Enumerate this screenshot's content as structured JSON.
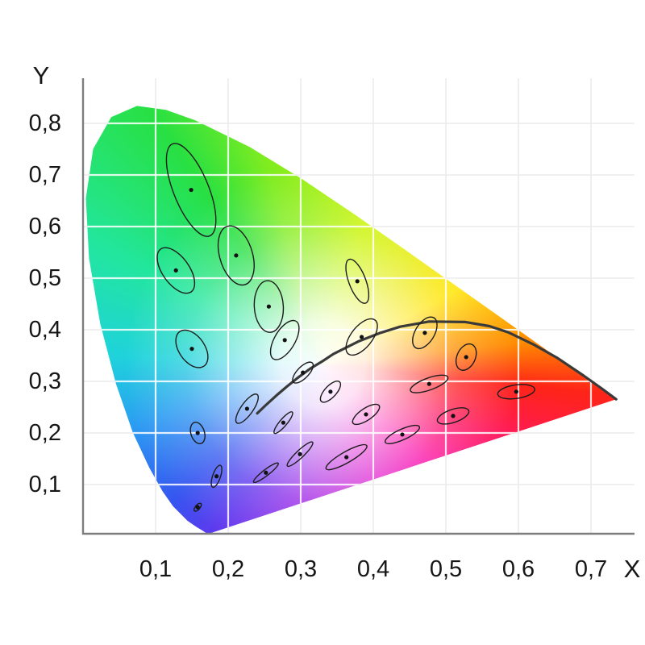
{
  "chart_data": {
    "type": "scatter",
    "description": "CIE 1931 xy chromaticity diagram (colored spectral-locus horseshoe) with MacAdam ellipses magnified 10x and the Planckian locus curve",
    "xlabel": "X",
    "ylabel": "Y",
    "xlim": [
      0,
      0.76
    ],
    "ylim": [
      0,
      0.885
    ],
    "grid": true,
    "legend": null,
    "decimal_separator": ",",
    "x_ticks": [
      {
        "value": 0.1,
        "label": "0,1"
      },
      {
        "value": 0.2,
        "label": "0,2"
      },
      {
        "value": 0.3,
        "label": "0,3"
      },
      {
        "value": 0.4,
        "label": "0,4"
      },
      {
        "value": 0.5,
        "label": "0,5"
      },
      {
        "value": 0.6,
        "label": "0,6"
      },
      {
        "value": 0.7,
        "label": "0,7"
      }
    ],
    "y_ticks": [
      {
        "value": 0.1,
        "label": "0,1"
      },
      {
        "value": 0.2,
        "label": "0,2"
      },
      {
        "value": 0.3,
        "label": "0,3"
      },
      {
        "value": 0.4,
        "label": "0,4"
      },
      {
        "value": 0.5,
        "label": "0,5"
      },
      {
        "value": 0.6,
        "label": "0,6"
      },
      {
        "value": 0.7,
        "label": "0,7"
      },
      {
        "value": 0.8,
        "label": "0,8"
      }
    ],
    "spectral_locus": [
      [
        0.1741,
        0.005
      ],
      [
        0.1726,
        0.0048
      ],
      [
        0.1689,
        0.0069
      ],
      [
        0.1644,
        0.0109
      ],
      [
        0.1566,
        0.0177
      ],
      [
        0.144,
        0.0297
      ],
      [
        0.1241,
        0.0578
      ],
      [
        0.1096,
        0.0868
      ],
      [
        0.0913,
        0.1327
      ],
      [
        0.0687,
        0.2007
      ],
      [
        0.0454,
        0.295
      ],
      [
        0.0235,
        0.4127
      ],
      [
        0.0082,
        0.5384
      ],
      [
        0.0039,
        0.6548
      ],
      [
        0.0139,
        0.7502
      ],
      [
        0.0389,
        0.812
      ],
      [
        0.0743,
        0.8338
      ],
      [
        0.1142,
        0.8262
      ],
      [
        0.1547,
        0.8059
      ],
      [
        0.2296,
        0.7543
      ],
      [
        0.3016,
        0.6923
      ],
      [
        0.3731,
        0.6245
      ],
      [
        0.4441,
        0.5547
      ],
      [
        0.5125,
        0.4866
      ],
      [
        0.5752,
        0.4242
      ],
      [
        0.627,
        0.3725
      ],
      [
        0.6658,
        0.334
      ],
      [
        0.6915,
        0.3083
      ],
      [
        0.714,
        0.2859
      ],
      [
        0.7347,
        0.2653
      ]
    ],
    "planckian_locus": [
      [
        0.24,
        0.238
      ],
      [
        0.252,
        0.254
      ],
      [
        0.266,
        0.272
      ],
      [
        0.281,
        0.29
      ],
      [
        0.295,
        0.306
      ],
      [
        0.3135,
        0.325
      ],
      [
        0.33,
        0.339
      ],
      [
        0.345,
        0.353
      ],
      [
        0.3805,
        0.378
      ],
      [
        0.41,
        0.394
      ],
      [
        0.437,
        0.406
      ],
      [
        0.477,
        0.416
      ],
      [
        0.527,
        0.415
      ],
      [
        0.56,
        0.407
      ],
      [
        0.586,
        0.395
      ],
      [
        0.62,
        0.372
      ],
      [
        0.653,
        0.346
      ],
      [
        0.69,
        0.311
      ],
      [
        0.715,
        0.286
      ],
      [
        0.7347,
        0.2653
      ]
    ],
    "ellipse_magnification": 10,
    "macadam_ellipses": [
      {
        "x": 0.158,
        "y": 0.056,
        "a": 0.85,
        "b": 0.35,
        "theta": 62.5
      },
      {
        "x": 0.184,
        "y": 0.116,
        "a": 2.2,
        "b": 0.55,
        "theta": 77
      },
      {
        "x": 0.252,
        "y": 0.123,
        "a": 2.5,
        "b": 0.5,
        "theta": 48
      },
      {
        "x": 0.149,
        "y": 0.671,
        "a": 9.3,
        "b": 2.5,
        "theta": 105
      },
      {
        "x": 0.128,
        "y": 0.515,
        "a": 4.7,
        "b": 2.0,
        "theta": 112.5
      },
      {
        "x": 0.211,
        "y": 0.544,
        "a": 5.8,
        "b": 2.3,
        "theta": 100
      },
      {
        "x": 0.256,
        "y": 0.445,
        "a": 5.0,
        "b": 2.0,
        "theta": 92
      },
      {
        "x": 0.15,
        "y": 0.363,
        "a": 3.8,
        "b": 1.9,
        "theta": 110
      },
      {
        "x": 0.278,
        "y": 0.38,
        "a": 4.0,
        "b": 1.5,
        "theta": 70
      },
      {
        "x": 0.378,
        "y": 0.494,
        "a": 4.4,
        "b": 1.2,
        "theta": 104
      },
      {
        "x": 0.158,
        "y": 0.2,
        "a": 2.1,
        "b": 0.95,
        "theta": 100
      },
      {
        "x": 0.226,
        "y": 0.247,
        "a": 3.1,
        "b": 0.9,
        "theta": 65
      },
      {
        "x": 0.303,
        "y": 0.317,
        "a": 2.3,
        "b": 0.9,
        "theta": 59
      },
      {
        "x": 0.384,
        "y": 0.386,
        "a": 3.8,
        "b": 1.6,
        "theta": 65
      },
      {
        "x": 0.471,
        "y": 0.394,
        "a": 3.2,
        "b": 1.4,
        "theta": 71
      },
      {
        "x": 0.528,
        "y": 0.347,
        "a": 2.6,
        "b": 1.3,
        "theta": 77
      },
      {
        "x": 0.477,
        "y": 0.295,
        "a": 2.9,
        "b": 1.1,
        "theta": 29
      },
      {
        "x": 0.51,
        "y": 0.233,
        "a": 2.4,
        "b": 1.2,
        "theta": 29.5
      },
      {
        "x": 0.597,
        "y": 0.28,
        "a": 2.6,
        "b": 1.3,
        "theta": 13
      },
      {
        "x": 0.341,
        "y": 0.28,
        "a": 2.3,
        "b": 0.9,
        "theta": 60
      },
      {
        "x": 0.39,
        "y": 0.236,
        "a": 2.5,
        "b": 1.0,
        "theta": 47
      },
      {
        "x": 0.44,
        "y": 0.197,
        "a": 2.8,
        "b": 0.95,
        "theta": 34.5
      },
      {
        "x": 0.276,
        "y": 0.22,
        "a": 2.4,
        "b": 0.55,
        "theta": 60
      },
      {
        "x": 0.299,
        "y": 0.159,
        "a": 2.9,
        "b": 0.6,
        "theta": 54
      },
      {
        "x": 0.363,
        "y": 0.153,
        "a": 3.6,
        "b": 0.95,
        "theta": 40
      }
    ],
    "white_point": [
      0.33,
      0.333
    ],
    "style": {
      "axis_color": "#7d7d7d",
      "outer_grid_color": "#ebebeb",
      "inner_grid_color": "rgba(255,255,255,0.85)",
      "ellipse_stroke": "#1c1c1c",
      "dot_color": "#111111",
      "curve_color": "#3a3a3a",
      "label_color": "#161616",
      "hue_wheel_stops": [
        [
          16,
          "#c8f400"
        ],
        [
          61,
          "#ffe400"
        ],
        [
          84,
          "#ff8a00"
        ],
        [
          96,
          "#ff2418"
        ],
        [
          112,
          "#ff1a5e"
        ],
        [
          134,
          "#fa14ae"
        ],
        [
          158,
          "#dc1ed2"
        ],
        [
          190,
          "#9a2ae8"
        ],
        [
          212,
          "#6038ee"
        ],
        [
          228,
          "#3556f0"
        ],
        [
          252,
          "#2b9cf2"
        ],
        [
          272,
          "#1fd2dc"
        ],
        [
          298,
          "#22e69e"
        ],
        [
          326,
          "#28e042"
        ],
        [
          344,
          "#7eec20"
        ],
        [
          376,
          "#c8f400"
        ]
      ]
    }
  }
}
